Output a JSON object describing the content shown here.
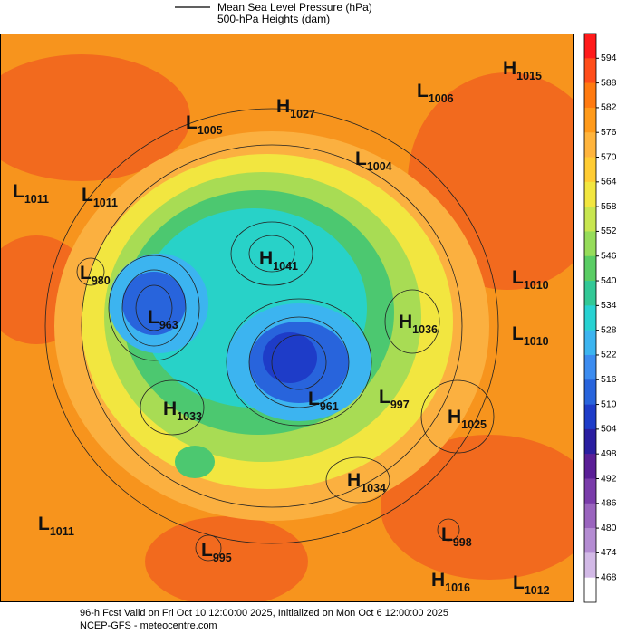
{
  "header": {
    "line1": "Mean Sea Level Pressure (hPa)",
    "line2": "500-hPa Heights (dam)"
  },
  "colorbar": {
    "ticks": [
      594,
      588,
      582,
      576,
      570,
      564,
      558,
      552,
      546,
      540,
      534,
      528,
      522,
      516,
      510,
      504,
      498,
      492,
      486,
      480,
      474,
      468
    ],
    "colors": [
      "#ff1a1a",
      "#ff4d1a",
      "#ff7a10",
      "#ff9a1a",
      "#ffb43c",
      "#ffcc33",
      "#f2e640",
      "#c8e650",
      "#96dc5a",
      "#5acd64",
      "#32c896",
      "#28d2d2",
      "#3cb4f0",
      "#3c8cf0",
      "#2864dc",
      "#1e3cc8",
      "#2a1ea0",
      "#5a1e96",
      "#7a3caa",
      "#9a64be",
      "#b48cd2",
      "#d2b9e6",
      "#ffffff"
    ]
  },
  "centers": [
    {
      "letter": "H",
      "value": 1015
    },
    {
      "letter": "L",
      "value": 1006
    },
    {
      "letter": "H",
      "value": 1027
    },
    {
      "letter": "L",
      "value": 1005
    },
    {
      "letter": "L",
      "value": 1004
    },
    {
      "letter": "L",
      "value": 1011
    },
    {
      "letter": "L",
      "value": 1011
    },
    {
      "letter": "H",
      "value": 1041
    },
    {
      "letter": "L",
      "value": 980
    },
    {
      "letter": "L",
      "value": 1010
    },
    {
      "letter": "L",
      "value": 963
    },
    {
      "letter": "H",
      "value": 1036
    },
    {
      "letter": "L",
      "value": 1010
    },
    {
      "letter": "L",
      "value": 961
    },
    {
      "letter": "L",
      "value": 997
    },
    {
      "letter": "H",
      "value": 1033
    },
    {
      "letter": "H",
      "value": 1025
    },
    {
      "letter": "H",
      "value": 1034
    },
    {
      "letter": "L",
      "value": 1011
    },
    {
      "letter": "L",
      "value": 998
    },
    {
      "letter": "L",
      "value": 995
    },
    {
      "letter": "H",
      "value": 1016
    },
    {
      "letter": "L",
      "value": 1012
    }
  ],
  "footer": {
    "line1": "96-h Fcst Valid on Fri Oct 10 12:00:00 2025, Initialized on Mon Oct  6 12:00:00 2025",
    "line2": "NCEP-GFS  - meteocentre.com"
  }
}
